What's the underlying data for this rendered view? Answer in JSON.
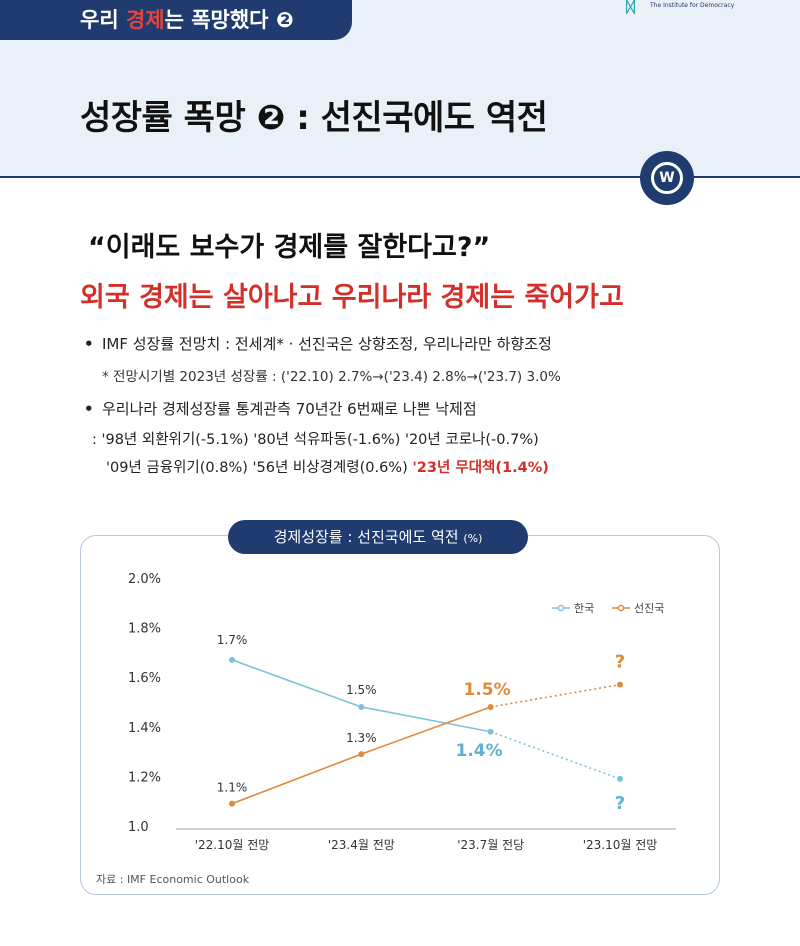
{
  "header": {
    "series_prefix": "우리 ",
    "series_highlight": "경제",
    "series_suffix": "는 폭망했다 ❷",
    "logo_text": "The Institute for Democracy",
    "page_title": "성장률 폭망 ❷ : 선진국에도 역전",
    "badge": "W"
  },
  "quote": "“이래도 보수가 경제를 잘한다고?”",
  "headline": "외국 경제는 살아나고 우리나라 경제는 죽어가고",
  "bullets": [
    {
      "marker": "•",
      "text": "IMF 성장률 전망치 : 전세계* · 선진국은 상향조정, 우리나라만 하향조정",
      "note": "* 전망시기별 2023년 성장률 : ('22.10) 2.7%→('23.4) 2.8%→('23.7) 3.0%"
    },
    {
      "marker": "•",
      "text": "우리나라 경제성장률 통계관측 70년간 6번째로 나쁜 낙제점",
      "detail_line1": ": '98년 외환위기(-5.1%) '80년 석유파동(-1.6%) '20년 코로나(-0.7%)",
      "detail_line2": "'09년 금융위기(0.8%) '56년 비상경계령(0.6%) ",
      "detail_line2_red": "'23년 무대책(1.4%)"
    }
  ],
  "chart_title": "경제성장률 : 선진국에도 역전",
  "chart_unit": "(%)",
  "source": "자료 : IMF Economic Outlook",
  "colors": {
    "navy": "#1f3b6f",
    "red": "#d3302b",
    "korea": "#7ec3d9",
    "korea_label": "#5fb3ce",
    "advanced": "#e08a3c"
  },
  "chart_data": {
    "type": "line",
    "title": "경제성장률 : 선진국에도 역전",
    "unit": "(%)",
    "categories": [
      "'22.10월 전망",
      "'23.4월 전망",
      "'23.7월 전당",
      "'23.10월 전망"
    ],
    "ylim": [
      1.0,
      2.0
    ],
    "yticks": [
      2.0,
      1.8,
      1.6,
      1.4,
      1.2,
      1.0
    ],
    "ytick_labels": [
      "2.0%",
      "1.8%",
      "1.6%",
      "1.4%",
      "1.2%",
      "1.0"
    ],
    "grid": false,
    "legend_position": "top-right",
    "series": [
      {
        "name": "한국",
        "values": [
          1.67,
          1.48,
          1.38,
          1.19
        ],
        "labels": [
          "1.7%",
          "1.5%",
          "1.4%",
          "?"
        ],
        "dotted_from_index": 2
      },
      {
        "name": "선진국",
        "values": [
          1.09,
          1.29,
          1.48,
          1.57
        ],
        "labels": [
          "1.1%",
          "1.3%",
          "1.5%",
          "?"
        ],
        "dotted_from_index": 2
      }
    ]
  }
}
